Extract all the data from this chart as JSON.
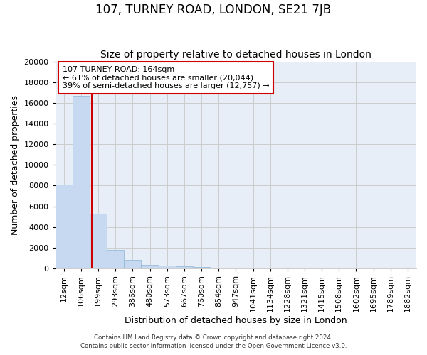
{
  "title": "107, TURNEY ROAD, LONDON, SE21 7JB",
  "subtitle": "Size of property relative to detached houses in London",
  "xlabel": "Distribution of detached houses by size in London",
  "ylabel": "Number of detached properties",
  "bar_labels": [
    "12sqm",
    "106sqm",
    "199sqm",
    "293sqm",
    "386sqm",
    "480sqm",
    "573sqm",
    "667sqm",
    "760sqm",
    "854sqm",
    "947sqm",
    "1041sqm",
    "1134sqm",
    "1228sqm",
    "1321sqm",
    "1415sqm",
    "1508sqm",
    "1602sqm",
    "1695sqm",
    "1789sqm",
    "1882sqm"
  ],
  "bar_heights": [
    8100,
    16700,
    5300,
    1750,
    800,
    300,
    250,
    200,
    150,
    0,
    0,
    0,
    0,
    0,
    0,
    0,
    0,
    0,
    0,
    0,
    0
  ],
  "bar_color": "#c6d9f0",
  "bar_edge_color": "#8ab4d4",
  "ylim": [
    0,
    20000
  ],
  "yticks": [
    0,
    2000,
    4000,
    6000,
    8000,
    10000,
    12000,
    14000,
    16000,
    18000,
    20000
  ],
  "vline_x": 1.62,
  "vline_color": "#cc0000",
  "annotation_line1": "107 TURNEY ROAD: 164sqm",
  "annotation_line2": "← 61% of detached houses are smaller (20,044)",
  "annotation_line3": "39% of semi-detached houses are larger (12,757) →",
  "annotation_box_color": "#cc0000",
  "annotation_bg": "#ffffff",
  "grid_color": "#cccccc",
  "background_color": "#ffffff",
  "plot_bg_color": "#e8eef8",
  "footer1": "Contains HM Land Registry data © Crown copyright and database right 2024.",
  "footer2": "Contains public sector information licensed under the Open Government Licence v3.0.",
  "title_fontsize": 12,
  "subtitle_fontsize": 10,
  "label_fontsize": 9,
  "tick_fontsize": 8,
  "annotation_fontsize": 8
}
